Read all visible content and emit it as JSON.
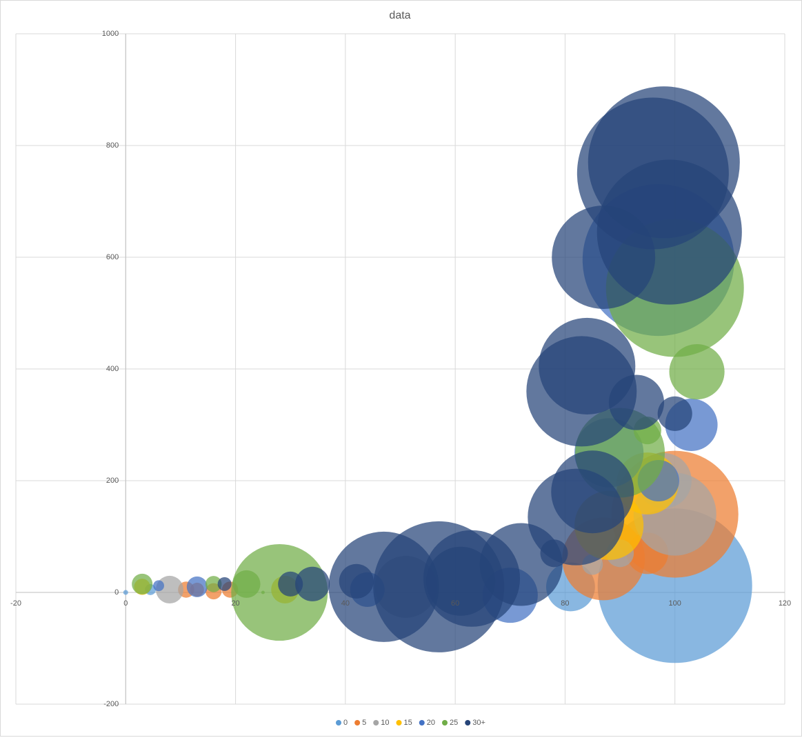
{
  "chart_data": {
    "type": "bubble",
    "title": "data",
    "xlim": [
      -20,
      120
    ],
    "xticks": [
      -20,
      0,
      20,
      40,
      60,
      80,
      100,
      120
    ],
    "ylim": [
      -200,
      1000
    ],
    "yticks": [
      -200,
      0,
      200,
      400,
      600,
      800,
      1000
    ],
    "grid": true,
    "legend": "bottom",
    "series": [
      {
        "name": "0",
        "color": "#5b9bd5",
        "x": [
          0,
          4.5,
          81,
          100
        ],
        "y": [
          0,
          5,
          10,
          12
        ],
        "sizes": [
          1,
          5,
          100,
          1000
        ]
      },
      {
        "name": "5",
        "color": "#ed7d31",
        "x": [
          11,
          13,
          16,
          19,
          95,
          87,
          100
        ],
        "y": [
          5,
          5,
          2,
          5,
          70,
          60,
          140
        ],
        "sizes": [
          11,
          8,
          11,
          11,
          72,
          287,
          675
        ]
      },
      {
        "name": "10",
        "color": "#a5a5a5",
        "x": [
          8,
          51,
          85,
          90,
          98,
          100
        ],
        "y": [
          5,
          10,
          50,
          70,
          200,
          140
        ],
        "sizes": [
          32,
          161,
          18,
          32,
          128,
          287
        ]
      },
      {
        "name": "15",
        "color": "#ffc000",
        "x": [
          3,
          29,
          88,
          95
        ],
        "y": [
          10,
          5,
          120,
          195
        ],
        "sizes": [
          11,
          32,
          200,
          161
        ]
      },
      {
        "name": "20",
        "color": "#4472c4",
        "x": [
          6,
          13,
          44,
          70,
          88,
          97,
          103,
          97
        ],
        "y": [
          12,
          10,
          5,
          -5,
          250,
          200,
          300,
          595
        ],
        "sizes": [
          5,
          18,
          50,
          128,
          200,
          72,
          115,
          965
        ]
      },
      {
        "name": "25",
        "color": "#70ad47",
        "x": [
          3,
          16,
          22,
          25,
          28,
          90,
          95,
          104,
          100
        ],
        "y": [
          15,
          15,
          15,
          0,
          0,
          250,
          290,
          395,
          545
        ],
        "sizes": [
          18,
          11,
          32,
          0.5,
          391,
          337,
          32,
          128,
          797
        ]
      },
      {
        "name": "30+",
        "color": "#264478",
        "x": [
          18,
          30,
          34,
          42,
          47,
          57,
          61,
          63,
          72,
          78,
          82,
          85,
          84,
          83,
          93,
          100,
          87,
          96,
          98,
          99
        ],
        "y": [
          15,
          15,
          15,
          20,
          10,
          10,
          20,
          25,
          50,
          70,
          135,
          180,
          405,
          360,
          340,
          320,
          600,
          750,
          770,
          645
        ],
        "sizes": [
          8,
          26,
          50,
          50,
          510,
          720,
          200,
          391,
          287,
          32,
          391,
          287,
          391,
          510,
          128,
          50,
          448,
          965,
          965,
          880
        ]
      }
    ]
  }
}
